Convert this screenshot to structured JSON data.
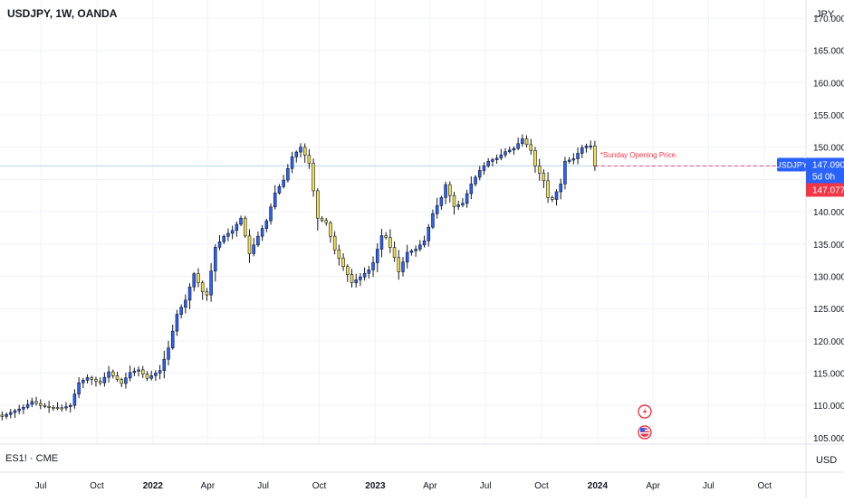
{
  "header": {
    "title": "USDJPY, 1W, OANDA",
    "axis_currency": "JPY"
  },
  "sub_pane": {
    "label": "ES1! · CME",
    "currency": "USD"
  },
  "price_labels": {
    "symbol": "USDJPY",
    "last_price": "147.090",
    "countdown": "5d 0h",
    "open_price": "147.077"
  },
  "annotation": "*Sunday Opening Price.",
  "colors": {
    "up_body": "#2962ff",
    "down_body": "#f7e34a",
    "wick": "#131722",
    "symbol_label": "#2962ff",
    "open_label": "#f23645",
    "horizontal_line": "#b2d7f0"
  },
  "icons": [
    "lightning-event-icon",
    "us-flag-event-icon"
  ],
  "chart_data": {
    "type": "candlestick",
    "title": "USDJPY, 1W, OANDA",
    "ylabel": "JPY",
    "y_ticks": [
      105,
      110,
      115,
      120,
      125,
      130,
      135,
      140,
      145,
      150,
      155,
      160,
      165,
      170
    ],
    "y_tick_labels": [
      "105.000",
      "110.000",
      "115.000",
      "120.000",
      "125.000",
      "130.000",
      "135.000",
      "140.000",
      "145.000",
      "150.000",
      "155.000",
      "160.000",
      "165.000",
      "170.000"
    ],
    "ylim": [
      104,
      172.8
    ],
    "x_ticks": [
      {
        "label": "Jul",
        "date": "2021-07-01",
        "bold": false
      },
      {
        "label": "Oct",
        "date": "2021-10-01",
        "bold": false
      },
      {
        "label": "2022",
        "date": "2022-01-01",
        "bold": true
      },
      {
        "label": "Apr",
        "date": "2022-04-01",
        "bold": false
      },
      {
        "label": "Jul",
        "date": "2022-07-01",
        "bold": false
      },
      {
        "label": "Oct",
        "date": "2022-10-01",
        "bold": false
      },
      {
        "label": "2023",
        "date": "2023-01-01",
        "bold": true
      },
      {
        "label": "Apr",
        "date": "2023-04-01",
        "bold": false
      },
      {
        "label": "Jul",
        "date": "2023-07-01",
        "bold": false
      },
      {
        "label": "Oct",
        "date": "2023-10-01",
        "bold": false
      },
      {
        "label": "2024",
        "date": "2024-01-01",
        "bold": true
      },
      {
        "label": "Apr",
        "date": "2024-04-01",
        "bold": false
      },
      {
        "label": "Jul",
        "date": "2024-07-01",
        "bold": false
      },
      {
        "label": "Oct",
        "date": "2024-10-01",
        "bold": false
      }
    ],
    "x_range": [
      "2021-04-25",
      "2024-12-08"
    ],
    "horizontal_line_value": 147.09,
    "dashed_line_value": 147.077,
    "candles_weekly_start": "2021-04-25",
    "close_path": [
      {
        "w": 0,
        "c": 108.3
      },
      {
        "w": 2,
        "c": 108.9
      },
      {
        "w": 5,
        "c": 109.7
      },
      {
        "w": 7,
        "c": 110.6
      },
      {
        "w": 9,
        "c": 110.0
      },
      {
        "w": 11,
        "c": 109.7
      },
      {
        "w": 14,
        "c": 109.6
      },
      {
        "w": 16,
        "c": 110.0
      },
      {
        "w": 18,
        "c": 113.5
      },
      {
        "w": 20,
        "c": 114.3
      },
      {
        "w": 23,
        "c": 113.5
      },
      {
        "w": 25,
        "c": 115.2
      },
      {
        "w": 28,
        "c": 113.4
      },
      {
        "w": 30,
        "c": 115.1
      },
      {
        "w": 32,
        "c": 115.5
      },
      {
        "w": 34,
        "c": 114.2
      },
      {
        "w": 37,
        "c": 115.4
      },
      {
        "w": 39,
        "c": 118.9
      },
      {
        "w": 41,
        "c": 124.1
      },
      {
        "w": 43,
        "c": 126.3
      },
      {
        "w": 45,
        "c": 130.4
      },
      {
        "w": 47,
        "c": 127.6
      },
      {
        "w": 48,
        "c": 127.1
      },
      {
        "w": 50,
        "c": 134.5
      },
      {
        "w": 52,
        "c": 136.2
      },
      {
        "w": 54,
        "c": 137.1
      },
      {
        "w": 56,
        "c": 139.0
      },
      {
        "w": 58,
        "c": 133.5
      },
      {
        "w": 60,
        "c": 136.2
      },
      {
        "w": 62,
        "c": 138.6
      },
      {
        "w": 64,
        "c": 142.9
      },
      {
        "w": 66,
        "c": 144.9
      },
      {
        "w": 68,
        "c": 148.5
      },
      {
        "w": 70,
        "c": 150.0
      },
      {
        "w": 72,
        "c": 147.5
      },
      {
        "w": 74,
        "c": 139.0
      },
      {
        "w": 76,
        "c": 138.3
      },
      {
        "w": 78,
        "c": 134.1
      },
      {
        "w": 80,
        "c": 131.5
      },
      {
        "w": 82,
        "c": 129.0
      },
      {
        "w": 84,
        "c": 129.9
      },
      {
        "w": 86,
        "c": 131.0
      },
      {
        "w": 87,
        "c": 132.1
      },
      {
        "w": 89,
        "c": 136.3
      },
      {
        "w": 90,
        "c": 136.0
      },
      {
        "w": 92,
        "c": 132.9
      },
      {
        "w": 93,
        "c": 130.7
      },
      {
        "w": 95,
        "c": 133.7
      },
      {
        "w": 97,
        "c": 134.2
      },
      {
        "w": 99,
        "c": 135.5
      },
      {
        "w": 101,
        "c": 139.7
      },
      {
        "w": 103,
        "c": 142.2
      },
      {
        "w": 104,
        "c": 144.2
      },
      {
        "w": 106,
        "c": 140.8
      },
      {
        "w": 108,
        "c": 141.3
      },
      {
        "w": 110,
        "c": 144.3
      },
      {
        "w": 112,
        "c": 146.4
      },
      {
        "w": 114,
        "c": 147.8
      },
      {
        "w": 116,
        "c": 148.3
      },
      {
        "w": 118,
        "c": 149.3
      },
      {
        "w": 120,
        "c": 149.8
      },
      {
        "w": 122,
        "c": 151.3
      },
      {
        "w": 124,
        "c": 149.5
      },
      {
        "w": 125,
        "c": 147.1
      },
      {
        "w": 127,
        "c": 144.8
      },
      {
        "w": 128,
        "c": 142.2
      },
      {
        "w": 129,
        "c": 141.9
      },
      {
        "w": 131,
        "c": 144.3
      },
      {
        "w": 132,
        "c": 147.8
      },
      {
        "w": 134,
        "c": 148.2
      },
      {
        "w": 136,
        "c": 149.9
      },
      {
        "w": 137,
        "c": 150.2
      },
      {
        "w": 138,
        "c": 150.2
      },
      {
        "w": 139,
        "c": 147.1
      }
    ],
    "first_open": 108.5
  }
}
